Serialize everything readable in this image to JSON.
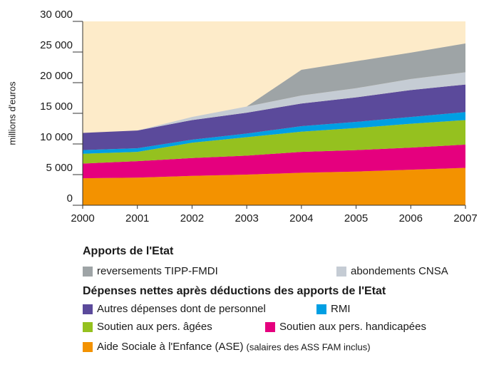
{
  "chart_data": {
    "type": "stacked_area",
    "y_label": "millions d'euros",
    "x": [
      2000,
      2001,
      2002,
      2003,
      2004,
      2005,
      2006,
      2007
    ],
    "xlim": [
      2000,
      2007
    ],
    "xticks": [
      2000,
      2001,
      2002,
      2003,
      2004,
      2005,
      2006,
      2007
    ],
    "ylim": [
      0,
      30000
    ],
    "yticks": [
      0,
      {
        "value": 5000,
        "label": "5 000"
      },
      {
        "value": 10000,
        "label": "10 000"
      },
      {
        "value": 15000,
        "label": "15 000"
      },
      {
        "value": 20000,
        "label": "20 000"
      },
      {
        "value": 25000,
        "label": "25 000"
      },
      {
        "value": 30000,
        "label": "30 000"
      }
    ],
    "legend_groups": [
      "Apports de l'Etat",
      "Dépenses nettes après déductions des apports de l'Etat"
    ],
    "legend_note": "(salaires des ASS FAM inclus)",
    "background": "#fdebc9",
    "series": [
      {
        "name": "Aide Sociale à l'Enfance (ASE)",
        "color": "#f39200",
        "values": [
          4400,
          4500,
          4800,
          5000,
          5300,
          5500,
          5800,
          6100
        ]
      },
      {
        "name": "Soutien aux pers. handicapées",
        "color": "#e5007e",
        "values": [
          2400,
          2700,
          2900,
          3100,
          3400,
          3500,
          3600,
          3800
        ]
      },
      {
        "name": "Soutien aux pers. âgées",
        "color": "#95c11f",
        "values": [
          1600,
          1500,
          2500,
          3000,
          3300,
          3600,
          3900,
          4000
        ]
      },
      {
        "name": "RMI",
        "color": "#009fe3",
        "values": [
          600,
          600,
          500,
          600,
          900,
          1000,
          1100,
          1300
        ]
      },
      {
        "name": "Autres dépenses dont de personnel",
        "color": "#5b4a9b",
        "values": [
          2800,
          2900,
          3200,
          3400,
          3700,
          4000,
          4400,
          4500
        ]
      },
      {
        "name": "abondements CNSA",
        "color": "#c5ccd4",
        "values": [
          0,
          0,
          500,
          1000,
          1300,
          1500,
          1800,
          2000
        ]
      },
      {
        "name": "reversements TIPP-FMDI",
        "color": "#9ea4a6",
        "values": [
          0,
          0,
          0,
          0,
          4200,
          4400,
          4300,
          4700
        ]
      }
    ]
  }
}
